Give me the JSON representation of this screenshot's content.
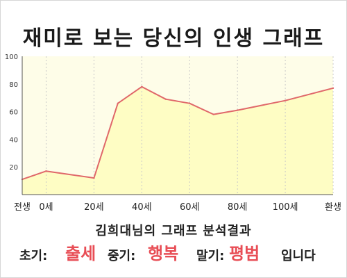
{
  "title": "재미로 보는 당신의 인생 그래프",
  "chart_data": {
    "type": "area",
    "title": "재미로 보는 당신의 인생 그래프",
    "x": [
      -10,
      0,
      20,
      30,
      40,
      50,
      60,
      70,
      80,
      100,
      120
    ],
    "values": [
      11,
      17,
      12,
      66,
      78,
      69,
      66,
      58,
      61,
      68,
      77
    ],
    "tick_positions": [
      -10,
      0,
      20,
      40,
      60,
      80,
      100,
      120
    ],
    "x_tick_labels": [
      "전생",
      "0세",
      "20세",
      "40세",
      "60세",
      "80세",
      "100세",
      "환생"
    ],
    "y_ticks": [
      20,
      40,
      60,
      80,
      100
    ],
    "xlim": [
      -10,
      120
    ],
    "ylim": [
      0,
      100
    ],
    "grid": "vertical dashed",
    "legend": "none",
    "fill_color": "#fefdc4",
    "line_color": "#e0686a",
    "plot_bg": "#fefde8"
  },
  "result": {
    "name_line": "김희대님의 그래프 분석결과",
    "early_label": "초기:",
    "early_value": "출세",
    "middle_label": "중기:",
    "middle_value": "행복",
    "late_label": "말기:",
    "late_value": "평범",
    "ending": "입니다"
  },
  "colors": {
    "accent": "#e84d55",
    "text": "#1a1a1a"
  }
}
